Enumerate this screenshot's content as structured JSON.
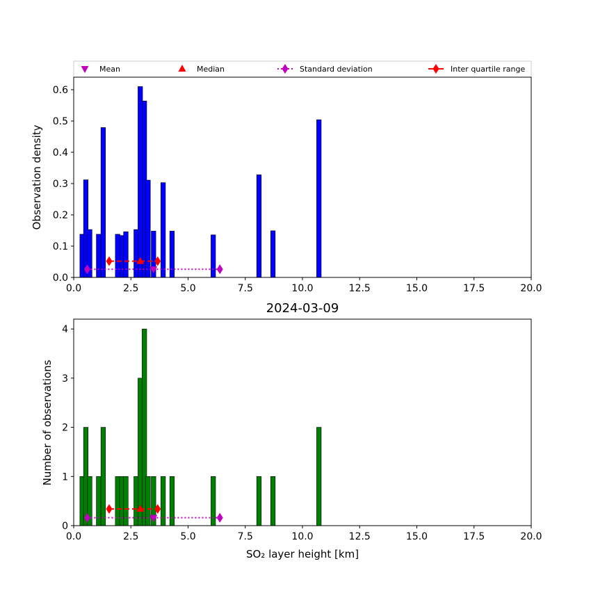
{
  "chart_data": [
    {
      "type": "bar",
      "panel": "top",
      "ylabel": "Observation density",
      "xlabel": "",
      "title": "",
      "xlim": [
        0,
        20
      ],
      "ylim": [
        0,
        0.64
      ],
      "xticks": [
        "0.0",
        "2.5",
        "5.0",
        "7.5",
        "10.0",
        "12.5",
        "15.0",
        "17.5",
        "20.0"
      ],
      "yticks": [
        "0.0",
        "0.1",
        "0.2",
        "0.3",
        "0.4",
        "0.5",
        "0.6"
      ],
      "ytick_values": [
        0,
        0.1,
        0.2,
        0.3,
        0.4,
        0.5,
        0.6
      ],
      "bar_color": "#0000ff",
      "bin_width": 0.2,
      "bins": [
        {
          "x": 0.37,
          "value": 0.138
        },
        {
          "x": 0.53,
          "value": 0.312
        },
        {
          "x": 0.7,
          "value": 0.153
        },
        {
          "x": 1.09,
          "value": 0.138
        },
        {
          "x": 1.29,
          "value": 0.479
        },
        {
          "x": 1.92,
          "value": 0.138
        },
        {
          "x": 2.11,
          "value": 0.134
        },
        {
          "x": 2.28,
          "value": 0.146
        },
        {
          "x": 2.73,
          "value": 0.153
        },
        {
          "x": 2.91,
          "value": 0.61
        },
        {
          "x": 3.09,
          "value": 0.564
        },
        {
          "x": 3.25,
          "value": 0.311
        },
        {
          "x": 3.49,
          "value": 0.148
        },
        {
          "x": 3.91,
          "value": 0.303
        },
        {
          "x": 4.3,
          "value": 0.148
        },
        {
          "x": 6.1,
          "value": 0.136
        },
        {
          "x": 8.1,
          "value": 0.328
        },
        {
          "x": 8.71,
          "value": 0.149
        },
        {
          "x": 10.72,
          "value": 0.504
        }
      ],
      "stats": {
        "y": 0.052,
        "sd_y": 0.026
      }
    },
    {
      "type": "bar",
      "panel": "bottom",
      "title": "2024-03-09",
      "ylabel": "Number of observations",
      "xlabel": "SO₂ layer height [km]",
      "xlim": [
        0,
        20
      ],
      "ylim": [
        0,
        4.2
      ],
      "xticks": [
        "0.0",
        "2.5",
        "5.0",
        "7.5",
        "10.0",
        "12.5",
        "15.0",
        "17.5",
        "20.0"
      ],
      "yticks": [
        "0",
        "1",
        "2",
        "3",
        "4"
      ],
      "ytick_values": [
        0,
        1,
        2,
        3,
        4
      ],
      "bar_color": "#008000",
      "bin_width": 0.2,
      "bins": [
        {
          "x": 0.37,
          "value": 1
        },
        {
          "x": 0.53,
          "value": 2
        },
        {
          "x": 0.7,
          "value": 1
        },
        {
          "x": 1.09,
          "value": 1
        },
        {
          "x": 1.29,
          "value": 2
        },
        {
          "x": 1.92,
          "value": 1
        },
        {
          "x": 2.11,
          "value": 1
        },
        {
          "x": 2.28,
          "value": 1
        },
        {
          "x": 2.73,
          "value": 1
        },
        {
          "x": 2.91,
          "value": 3
        },
        {
          "x": 3.09,
          "value": 4
        },
        {
          "x": 3.25,
          "value": 1
        },
        {
          "x": 3.49,
          "value": 1
        },
        {
          "x": 3.91,
          "value": 1
        },
        {
          "x": 4.3,
          "value": 1
        },
        {
          "x": 6.1,
          "value": 1
        },
        {
          "x": 8.1,
          "value": 1
        },
        {
          "x": 8.71,
          "value": 1
        },
        {
          "x": 10.72,
          "value": 2
        }
      ],
      "stats": {
        "y": 0.34,
        "sd_y": 0.16
      }
    }
  ],
  "statistics": {
    "mean": 3.49,
    "median": 2.91,
    "iqr": [
      1.55,
      3.67
    ],
    "std_range": [
      0.59,
      6.39
    ]
  },
  "legend": {
    "placement": "top",
    "items": [
      {
        "label": "Mean",
        "marker": "triangle-down",
        "color": "#bf00bf"
      },
      {
        "label": "Median",
        "marker": "triangle-up",
        "color": "#ff0000"
      },
      {
        "label": "Standard deviation",
        "marker": "diamond",
        "line": "dotted",
        "color": "#bf00bf"
      },
      {
        "label": "Inter quartile range",
        "marker": "diamond",
        "line": "dashed",
        "color": "#ff0000"
      }
    ]
  }
}
